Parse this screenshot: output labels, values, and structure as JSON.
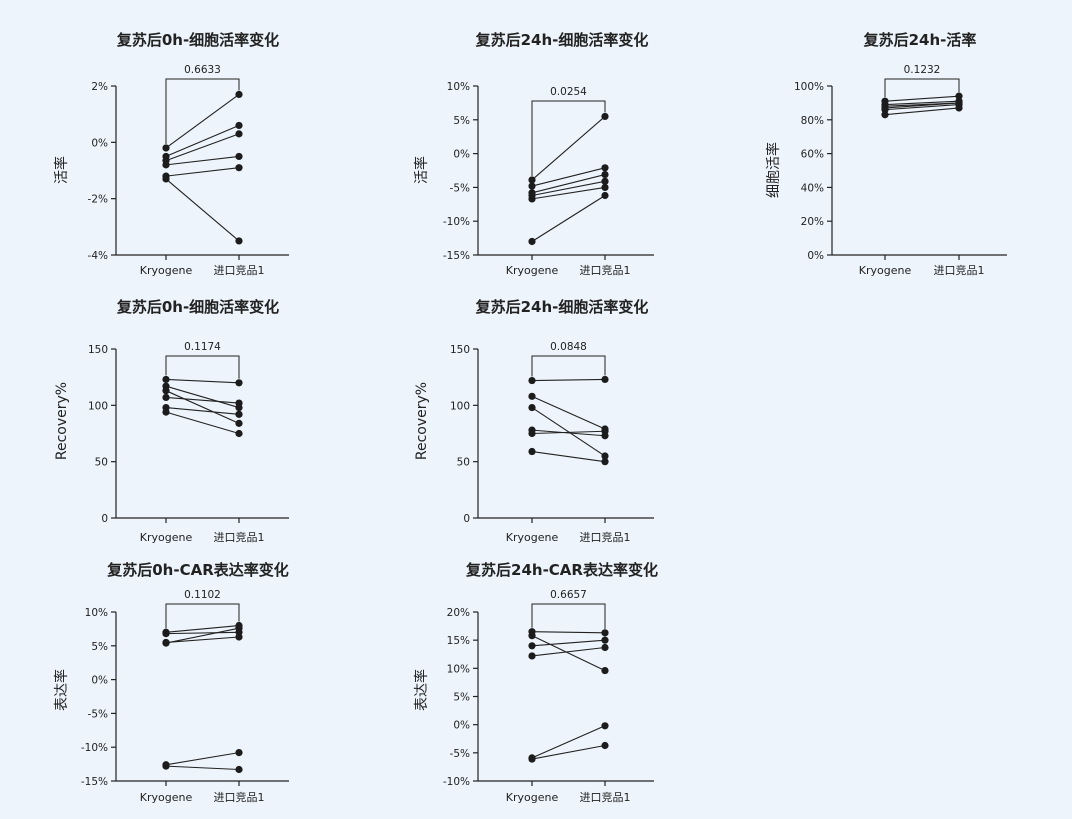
{
  "chart_data": [
    {
      "type": "scatter",
      "title": "复苏后0h-细胞活率变化",
      "ylabel": "活率",
      "categories": [
        "Kryogene",
        "进口竞品1"
      ],
      "ylim": [
        -4,
        2
      ],
      "yticks": [
        2,
        0,
        -2,
        -4
      ],
      "tick_suffix": "%",
      "p_value": "0.6633",
      "pairs": [
        [
          -0.2,
          1.7
        ],
        [
          -0.5,
          0.6
        ],
        [
          -0.65,
          0.3
        ],
        [
          -0.8,
          -0.5
        ],
        [
          -1.2,
          -0.9
        ],
        [
          -1.3,
          -3.5
        ]
      ]
    },
    {
      "type": "scatter",
      "title": "复苏后24h-细胞活率变化",
      "ylabel": "活率",
      "categories": [
        "Kryogene",
        "进口竞品1"
      ],
      "ylim": [
        -15,
        10
      ],
      "yticks": [
        10,
        5,
        0,
        -5,
        -10,
        -15
      ],
      "tick_suffix": "%",
      "p_value": "0.0254",
      "pairs": [
        [
          -3.9,
          5.5
        ],
        [
          -4.8,
          -2.1
        ],
        [
          -5.8,
          -3.1
        ],
        [
          -6.2,
          -4.1
        ],
        [
          -6.7,
          -5.0
        ],
        [
          -13.0,
          -6.2
        ]
      ]
    },
    {
      "type": "scatter",
      "title": "复苏后24h-活率",
      "ylabel": "细胞活率",
      "categories": [
        "Kryogene",
        "进口竞品1"
      ],
      "ylim": [
        0,
        100
      ],
      "yticks": [
        100,
        80,
        60,
        40,
        20,
        0
      ],
      "tick_suffix": "%",
      "p_value": "0.1232",
      "pairs": [
        [
          91,
          94
        ],
        [
          89,
          91
        ],
        [
          88,
          90
        ],
        [
          87,
          90
        ],
        [
          86,
          89
        ],
        [
          83,
          87
        ]
      ]
    },
    {
      "type": "scatter",
      "title": "复苏后0h-细胞活率变化",
      "ylabel": "Recovery%",
      "categories": [
        "Kryogene",
        "进口竞品1"
      ],
      "ylim": [
        0,
        150
      ],
      "yticks": [
        150,
        100,
        50,
        0
      ],
      "tick_suffix": "",
      "p_value": "0.1174",
      "pairs": [
        [
          123,
          120
        ],
        [
          117,
          98
        ],
        [
          113,
          84
        ],
        [
          107,
          102
        ],
        [
          98,
          92
        ],
        [
          94,
          75
        ]
      ]
    },
    {
      "type": "scatter",
      "title": "复苏后24h-细胞活率变化",
      "ylabel": "Recovery%",
      "categories": [
        "Kryogene",
        "进口竞品1"
      ],
      "ylim": [
        0,
        150
      ],
      "yticks": [
        150,
        100,
        50,
        0
      ],
      "tick_suffix": "",
      "p_value": "0.0848",
      "pairs": [
        [
          122,
          123
        ],
        [
          108,
          79
        ],
        [
          98,
          55
        ],
        [
          78,
          73
        ],
        [
          75,
          77
        ],
        [
          59,
          50
        ]
      ]
    },
    {
      "type": "scatter",
      "title": "复苏后0h-CAR表达率变化",
      "ylabel": "表达率",
      "categories": [
        "Kryogene",
        "进口竞品1"
      ],
      "ylim": [
        -15,
        10
      ],
      "yticks": [
        10,
        5,
        0,
        -5,
        -10,
        -15
      ],
      "tick_suffix": "%",
      "p_value": "0.1102",
      "pairs": [
        [
          7.0,
          8.0
        ],
        [
          6.8,
          7.0
        ],
        [
          5.5,
          6.3
        ],
        [
          5.4,
          7.6
        ],
        [
          -12.6,
          -10.8
        ],
        [
          -12.8,
          -13.3
        ]
      ]
    },
    {
      "type": "scatter",
      "title": "复苏后24h-CAR表达率变化",
      "ylabel": "表达率",
      "categories": [
        "Kryogene",
        "进口竞品1"
      ],
      "ylim": [
        -10,
        20
      ],
      "yticks": [
        20,
        15,
        10,
        5,
        0,
        -5,
        -10
      ],
      "tick_suffix": "%",
      "p_value": "0.6657",
      "pairs": [
        [
          16.5,
          16.3
        ],
        [
          15.8,
          9.6
        ],
        [
          14.0,
          15.0
        ],
        [
          12.2,
          13.7
        ],
        [
          -5.9,
          -0.2
        ],
        [
          -6.1,
          -3.7
        ]
      ]
    }
  ]
}
